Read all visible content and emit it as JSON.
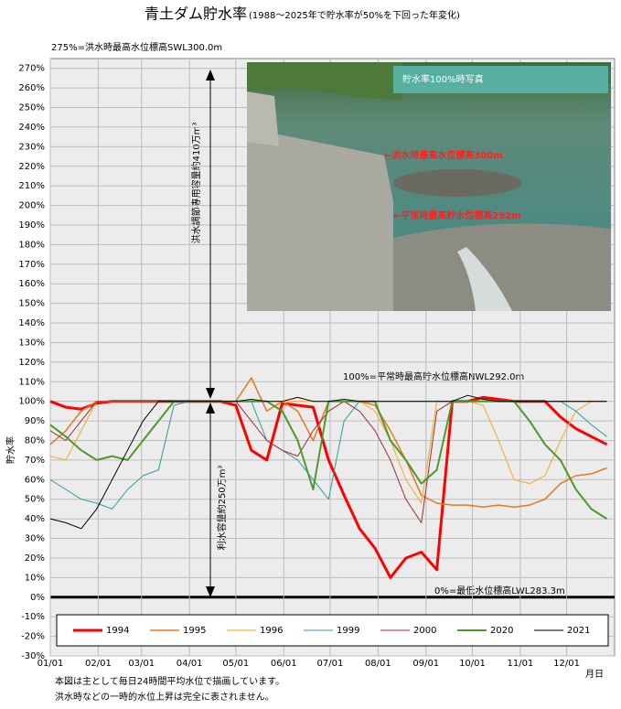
{
  "chart_data": {
    "type": "line",
    "title": "青土ダム貯水率",
    "subtitle": "(1988～2025年で貯水率が50%を下回った年変化)",
    "ylabel": "貯水率",
    "xlabel": "月日",
    "annotations": [
      "275%=洪水時最高水位標高SWL300.0m",
      "100%=平常時最高貯水位標高NWL292.0m",
      "0%=最低水位標高LWL283.3m",
      "洪水調節専用容量約410万m³",
      "利水容量約250万m³"
    ],
    "x": [
      0,
      10,
      20,
      30,
      40,
      50,
      60,
      70,
      80,
      90,
      100,
      110,
      120,
      130,
      140,
      150,
      160,
      170,
      180,
      190,
      200,
      210,
      220,
      230,
      240,
      250,
      260,
      270,
      280,
      290,
      300,
      310,
      320,
      330,
      340,
      350,
      360
    ],
    "xlim": [
      0,
      365
    ],
    "xticks": [
      {
        "value": 0,
        "label": "01/01"
      },
      {
        "value": 31,
        "label": "02/01"
      },
      {
        "value": 59,
        "label": "03/01"
      },
      {
        "value": 90,
        "label": "04/01"
      },
      {
        "value": 120,
        "label": "05/01"
      },
      {
        "value": 151,
        "label": "06/01"
      },
      {
        "value": 181,
        "label": "07/01"
      },
      {
        "value": 212,
        "label": "08/01"
      },
      {
        "value": 243,
        "label": "09/01"
      },
      {
        "value": 273,
        "label": "10/01"
      },
      {
        "value": 304,
        "label": "11/01"
      },
      {
        "value": 334,
        "label": "12/01"
      }
    ],
    "ylim": [
      -30,
      275
    ],
    "yticks": [
      {
        "value": -30,
        "label": "-30%"
      },
      {
        "value": -20,
        "label": "-20%"
      },
      {
        "value": -10,
        "label": "-10%"
      },
      {
        "value": 0,
        "label": "0%"
      },
      {
        "value": 10,
        "label": "10%"
      },
      {
        "value": 20,
        "label": "20%"
      },
      {
        "value": 30,
        "label": "30%"
      },
      {
        "value": 40,
        "label": "40%"
      },
      {
        "value": 50,
        "label": "50%"
      },
      {
        "value": 60,
        "label": "60%"
      },
      {
        "value": 70,
        "label": "70%"
      },
      {
        "value": 80,
        "label": "80%"
      },
      {
        "value": 90,
        "label": "90%"
      },
      {
        "value": 100,
        "label": "100%"
      },
      {
        "value": 110,
        "label": "110%"
      },
      {
        "value": 120,
        "label": "120%"
      },
      {
        "value": 130,
        "label": "130%"
      },
      {
        "value": 140,
        "label": "140%"
      },
      {
        "value": 150,
        "label": "150%"
      },
      {
        "value": 160,
        "label": "160%"
      },
      {
        "value": 170,
        "label": "170%"
      },
      {
        "value": 180,
        "label": "180%"
      },
      {
        "value": 190,
        "label": "190%"
      },
      {
        "value": 200,
        "label": "200%"
      },
      {
        "value": 210,
        "label": "210%"
      },
      {
        "value": 220,
        "label": "220%"
      },
      {
        "value": 230,
        "label": "230%"
      },
      {
        "value": 240,
        "label": "240%"
      },
      {
        "value": 250,
        "label": "250%"
      },
      {
        "value": 260,
        "label": "260%"
      },
      {
        "value": 270,
        "label": "270%"
      }
    ],
    "grid": true,
    "series": [
      {
        "name": "1994",
        "color": "#ff0000",
        "width": 3,
        "values": [
          100,
          97,
          96,
          99,
          100,
          100,
          100,
          100,
          100,
          100,
          100,
          100,
          98,
          75,
          70,
          99,
          98,
          97,
          70,
          52,
          35,
          25,
          10,
          20,
          23,
          14,
          100,
          100,
          102,
          101,
          100,
          100,
          100,
          92,
          86,
          82,
          78
        ]
      },
      {
        "name": "1995",
        "color": "#e87722",
        "width": 1.5,
        "values": [
          78,
          85,
          95,
          100,
          100,
          100,
          100,
          100,
          100,
          100,
          100,
          100,
          100,
          112,
          95,
          100,
          95,
          80,
          100,
          100,
          100,
          98,
          85,
          70,
          52,
          48,
          47,
          47,
          46,
          47,
          46,
          47,
          50,
          58,
          62,
          63,
          66
        ]
      },
      {
        "name": "1996",
        "color": "#f5b041",
        "width": 1.2,
        "values": [
          72,
          70,
          85,
          100,
          100,
          100,
          100,
          100,
          100,
          100,
          100,
          100,
          100,
          100,
          100,
          100,
          100,
          100,
          100,
          100,
          100,
          95,
          80,
          60,
          48,
          100,
          100,
          100,
          98,
          80,
          60,
          58,
          62,
          80,
          95,
          100,
          100
        ]
      },
      {
        "name": "1999",
        "color": "#2a9d9d",
        "width": 1,
        "values": [
          60,
          55,
          50,
          48,
          45,
          55,
          62,
          65,
          98,
          100,
          100,
          100,
          100,
          100,
          80,
          75,
          70,
          60,
          50,
          90,
          100,
          100,
          100,
          100,
          100,
          100,
          100,
          100,
          100,
          100,
          100,
          100,
          100,
          100,
          95,
          88,
          82
        ]
      },
      {
        "name": "2000",
        "color": "#a52a2a",
        "width": 1,
        "values": [
          85,
          80,
          90,
          100,
          100,
          100,
          100,
          100,
          100,
          100,
          100,
          100,
          100,
          90,
          80,
          75,
          72,
          85,
          95,
          100,
          95,
          85,
          70,
          50,
          38,
          95,
          100,
          100,
          100,
          100,
          100,
          100,
          100,
          100,
          100,
          100,
          100
        ]
      },
      {
        "name": "2020",
        "color": "#4c9a2a",
        "width": 2,
        "values": [
          88,
          82,
          75,
          70,
          72,
          70,
          80,
          90,
          100,
          100,
          100,
          100,
          100,
          100,
          100,
          95,
          80,
          55,
          100,
          100,
          100,
          100,
          80,
          70,
          58,
          65,
          100,
          100,
          100,
          100,
          100,
          90,
          78,
          70,
          55,
          45,
          40
        ]
      },
      {
        "name": "2021",
        "color": "#000000",
        "width": 1,
        "values": [
          40,
          38,
          35,
          45,
          60,
          75,
          90,
          100,
          100,
          100,
          100,
          100,
          100,
          101,
          100,
          100,
          102,
          100,
          100,
          101,
          100,
          100,
          100,
          100,
          100,
          100,
          100,
          103,
          101,
          100,
          100,
          100,
          100,
          100,
          100,
          100,
          100
        ]
      }
    ]
  },
  "photo": {
    "title": "貯水率100%時写真",
    "labels": [
      "←洪水時最高水位標高300m",
      "←平常時最高貯水位標高292m"
    ]
  },
  "notes": [
    "本図は主として毎日24時間平均水位で描画しています。",
    "洪水時などの一時的水位上昇は完全に表されません。"
  ]
}
